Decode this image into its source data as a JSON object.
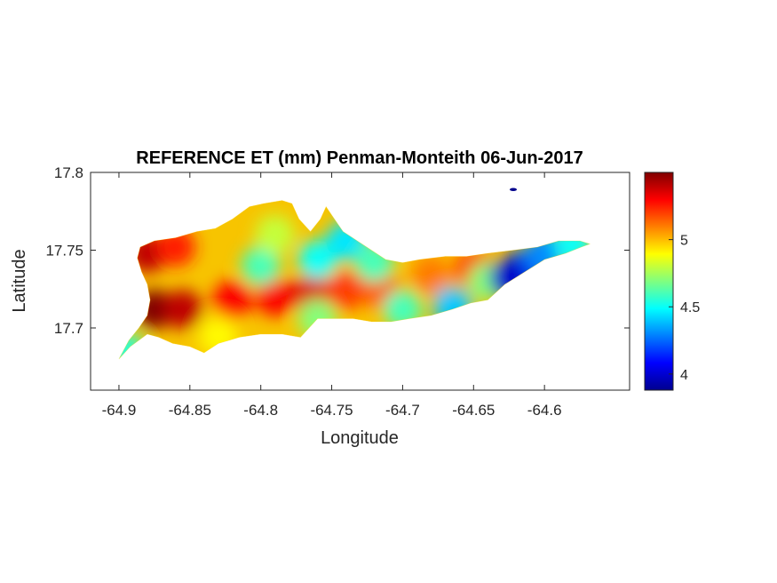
{
  "chart_data": {
    "type": "heatmap",
    "title": "REFERENCE ET (mm) Penman-Monteith 06-Jun-2017",
    "xlabel": "Longitude",
    "ylabel": "Latitude",
    "xlim": [
      -64.92,
      -64.54
    ],
    "ylim": [
      17.66,
      17.8
    ],
    "xticks": [
      -64.9,
      -64.85,
      -64.8,
      -64.75,
      -64.7,
      -64.65,
      -64.6
    ],
    "xtick_labels": [
      "-64.9",
      "-64.85",
      "-64.8",
      "-64.75",
      "-64.7",
      "-64.65",
      "-64.6"
    ],
    "yticks": [
      17.7,
      17.75,
      17.8
    ],
    "ytick_labels": [
      "17.7",
      "17.75",
      "17.8"
    ],
    "colorbar": {
      "colormap": "jet",
      "range": [
        3.88,
        5.5
      ],
      "ticks": [
        4,
        4.5,
        5
      ],
      "tick_labels": [
        "4",
        "4.5",
        "5"
      ]
    },
    "grid": false,
    "island_outline_lonlat": [
      [
        -64.9,
        17.68
      ],
      [
        -64.892,
        17.688
      ],
      [
        -64.88,
        17.696
      ],
      [
        -64.872,
        17.694
      ],
      [
        -64.862,
        17.69
      ],
      [
        -64.85,
        17.688
      ],
      [
        -64.84,
        17.684
      ],
      [
        -64.83,
        17.69
      ],
      [
        -64.815,
        17.694
      ],
      [
        -64.8,
        17.696
      ],
      [
        -64.785,
        17.696
      ],
      [
        -64.772,
        17.694
      ],
      [
        -64.766,
        17.7
      ],
      [
        -64.76,
        17.706
      ],
      [
        -64.748,
        17.706
      ],
      [
        -64.735,
        17.706
      ],
      [
        -64.722,
        17.704
      ],
      [
        -64.708,
        17.704
      ],
      [
        -64.695,
        17.706
      ],
      [
        -64.68,
        17.708
      ],
      [
        -64.665,
        17.712
      ],
      [
        -64.652,
        17.716
      ],
      [
        -64.64,
        17.718
      ],
      [
        -64.628,
        17.728
      ],
      [
        -64.614,
        17.736
      ],
      [
        -64.6,
        17.744
      ],
      [
        -64.585,
        17.748
      ],
      [
        -64.574,
        17.752
      ],
      [
        -64.568,
        17.754
      ],
      [
        -64.575,
        17.756
      ],
      [
        -64.59,
        17.756
      ],
      [
        -64.605,
        17.752
      ],
      [
        -64.622,
        17.75
      ],
      [
        -64.64,
        17.748
      ],
      [
        -64.655,
        17.746
      ],
      [
        -64.67,
        17.746
      ],
      [
        -64.688,
        17.744
      ],
      [
        -64.7,
        17.742
      ],
      [
        -64.712,
        17.744
      ],
      [
        -64.722,
        17.75
      ],
      [
        -64.732,
        17.756
      ],
      [
        -64.742,
        17.762
      ],
      [
        -64.748,
        17.77
      ],
      [
        -64.754,
        17.778
      ],
      [
        -64.758,
        17.77
      ],
      [
        -64.765,
        17.762
      ],
      [
        -64.773,
        17.77
      ],
      [
        -64.778,
        17.78
      ],
      [
        -64.785,
        17.782
      ],
      [
        -64.798,
        17.78
      ],
      [
        -64.808,
        17.778
      ],
      [
        -64.82,
        17.77
      ],
      [
        -64.832,
        17.764
      ],
      [
        -64.845,
        17.762
      ],
      [
        -64.86,
        17.758
      ],
      [
        -64.875,
        17.756
      ],
      [
        -64.885,
        17.752
      ],
      [
        -64.887,
        17.745
      ],
      [
        -64.884,
        17.736
      ],
      [
        -64.88,
        17.728
      ],
      [
        -64.878,
        17.718
      ],
      [
        -64.88,
        17.708
      ],
      [
        -64.886,
        17.7
      ],
      [
        -64.893,
        17.692
      ]
    ],
    "hotspots": [
      {
        "lon": -64.875,
        "lat": 17.712,
        "value": 5.5
      },
      {
        "lon": -64.88,
        "lat": 17.748,
        "value": 5.4
      },
      {
        "lon": -64.855,
        "lat": 17.712,
        "value": 5.4
      },
      {
        "lon": -64.82,
        "lat": 17.718,
        "value": 5.3
      },
      {
        "lon": -64.79,
        "lat": 17.72,
        "value": 5.3
      },
      {
        "lon": -64.765,
        "lat": 17.722,
        "value": 5.35
      },
      {
        "lon": -64.74,
        "lat": 17.724,
        "value": 5.2
      },
      {
        "lon": -64.715,
        "lat": 17.724,
        "value": 5.15
      },
      {
        "lon": -64.68,
        "lat": 17.734,
        "value": 5.1
      },
      {
        "lon": -64.65,
        "lat": 17.738,
        "value": 5.2
      },
      {
        "lon": -64.86,
        "lat": 17.752,
        "value": 5.25
      },
      {
        "lon": -64.8,
        "lat": 17.74,
        "value": 4.6
      },
      {
        "lon": -64.79,
        "lat": 17.76,
        "value": 4.8
      },
      {
        "lon": -64.76,
        "lat": 17.744,
        "value": 4.5
      },
      {
        "lon": -64.74,
        "lat": 17.756,
        "value": 4.45
      },
      {
        "lon": -64.72,
        "lat": 17.742,
        "value": 4.6
      },
      {
        "lon": -64.7,
        "lat": 17.712,
        "value": 4.6
      },
      {
        "lon": -64.76,
        "lat": 17.706,
        "value": 4.7
      },
      {
        "lon": -64.83,
        "lat": 17.695,
        "value": 4.9
      },
      {
        "lon": -64.895,
        "lat": 17.684,
        "value": 4.55
      },
      {
        "lon": -64.64,
        "lat": 17.73,
        "value": 4.7
      },
      {
        "lon": -64.615,
        "lat": 17.738,
        "value": 4.2
      },
      {
        "lon": -64.6,
        "lat": 17.748,
        "value": 4.3
      },
      {
        "lon": -64.625,
        "lat": 17.732,
        "value": 4.0
      },
      {
        "lon": -64.58,
        "lat": 17.754,
        "value": 4.5
      },
      {
        "lon": -64.665,
        "lat": 17.714,
        "value": 4.4
      },
      {
        "lon": -64.62,
        "lat": 17.789,
        "value": 3.9
      }
    ],
    "small_islet": {
      "lon": -64.622,
      "lat": 17.789,
      "value": 3.9
    }
  }
}
